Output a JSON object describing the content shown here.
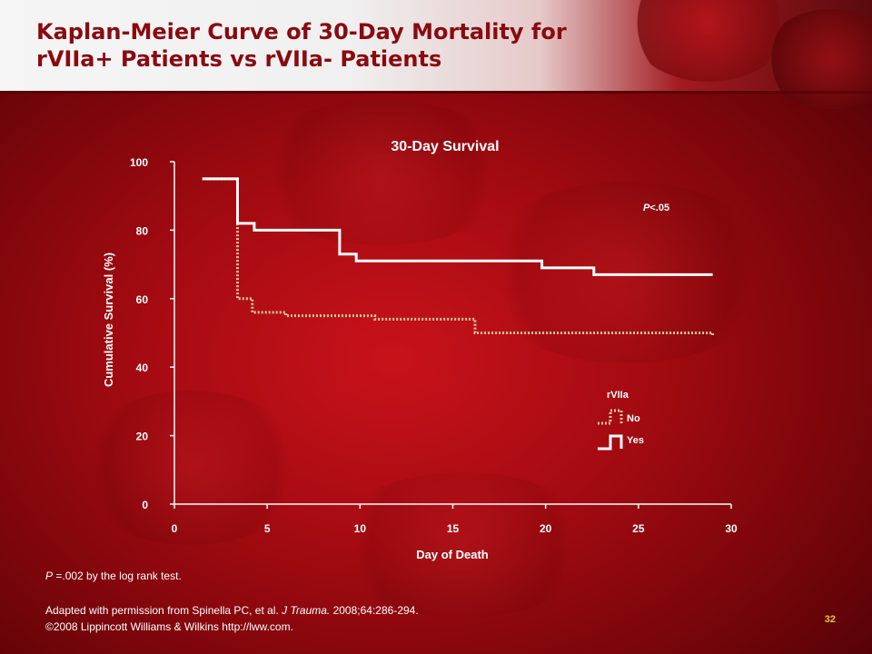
{
  "slide": {
    "title_line1": "Kaplan-Meier Curve of 30-Day Mortality for",
    "title_line2": "rVIIa+ Patients vs rVIIa- Patients",
    "footnote_p_prefix": "P",
    "footnote_p_text": " =.002 by the log rank test.",
    "citation_prefix": "Adapted with permission from Spinella PC, et al. ",
    "citation_journal": "J Trauma.",
    "citation_suffix": " 2008;64:286-294.",
    "copyright": "©2008 Lippincott Williams & Wilkins http://lww.com.",
    "slide_number": "32"
  },
  "colors": {
    "yes_line": "#ffffff",
    "no_line": "#d9c9a0",
    "text": "#ffffff"
  },
  "chart_data": {
    "type": "line",
    "step": true,
    "title": "30-Day Survival",
    "xlabel": "Day of Death",
    "ylabel": "Cumulative Survival (%)",
    "xlim": [
      0,
      30
    ],
    "ylim": [
      0,
      100
    ],
    "x_ticks": [
      0,
      5,
      10,
      15,
      20,
      25,
      30
    ],
    "y_ticks": [
      0,
      20,
      40,
      60,
      80,
      100
    ],
    "annotation_p": "P",
    "annotation_rest": "<.05",
    "legend_title": "rVIIa",
    "legend_position": "bottom-right",
    "series": [
      {
        "name": "No",
        "style": "dotted",
        "color": "#d9c9a0",
        "points": [
          [
            1.5,
            95
          ],
          [
            3.4,
            95
          ],
          [
            3.4,
            60
          ],
          [
            4.2,
            60
          ],
          [
            4.2,
            56
          ],
          [
            6,
            56
          ],
          [
            6,
            55
          ],
          [
            10.8,
            55
          ],
          [
            10.8,
            54
          ],
          [
            16.2,
            54
          ],
          [
            16.2,
            50
          ],
          [
            29,
            50
          ],
          [
            29,
            49
          ]
        ]
      },
      {
        "name": "Yes",
        "style": "solid",
        "color": "#ffffff",
        "points": [
          [
            1.5,
            95
          ],
          [
            3.4,
            95
          ],
          [
            3.4,
            82
          ],
          [
            4.3,
            82
          ],
          [
            4.3,
            80
          ],
          [
            8.9,
            80
          ],
          [
            8.9,
            73
          ],
          [
            9.8,
            73
          ],
          [
            9.8,
            71
          ],
          [
            19.8,
            71
          ],
          [
            19.8,
            69
          ],
          [
            22.6,
            69
          ],
          [
            22.6,
            67
          ],
          [
            29,
            67
          ]
        ]
      }
    ]
  }
}
